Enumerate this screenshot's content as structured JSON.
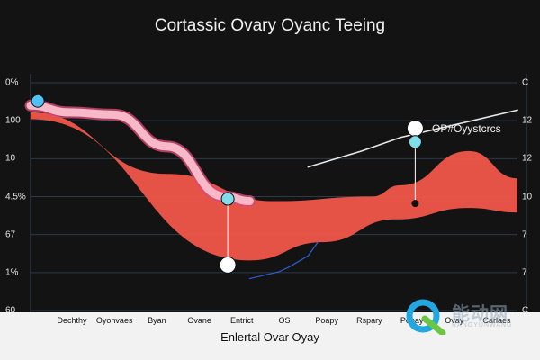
{
  "chart_data": {
    "type": "area",
    "title": "Cortassic Ovary Oyanc Teeing",
    "xlabel": "Enlertal Ovar Oyay",
    "ylabel": "",
    "x_tick_labels": [
      "Dechthy",
      "Oyonvaes",
      "Byan",
      "Ovane",
      "Entrict",
      "OS",
      "Poapy",
      "Rspary",
      "Popay",
      "Ovay",
      "Carlaes"
    ],
    "y_tick_labels_left": [
      "0%",
      "100",
      "10",
      "4.5%",
      "67",
      "1%",
      "60"
    ],
    "y_tick_labels_right": [
      "C",
      "12",
      "12",
      "10",
      "7",
      "7",
      "C"
    ],
    "ylim": [
      0,
      100
    ],
    "series": [
      {
        "color": "#f0564a",
        "upper": [
          [
            0,
            87
          ],
          [
            28,
            60
          ],
          [
            50,
            48
          ],
          [
            70,
            50
          ],
          [
            76,
            55
          ],
          [
            90,
            70
          ],
          [
            100,
            58
          ]
        ],
        "lower": [
          [
            0,
            84
          ],
          [
            45,
            22
          ],
          [
            60,
            30
          ],
          [
            75,
            40
          ],
          [
            90,
            45
          ],
          [
            100,
            43
          ]
        ]
      },
      {
        "color": "#f7b8c8",
        "values": [
          [
            0,
            90
          ],
          [
            8,
            87
          ],
          [
            17,
            86
          ],
          [
            28,
            72
          ],
          [
            40,
            50
          ],
          [
            45,
            48
          ]
        ]
      },
      {
        "color": "#e8e8e8",
        "values": [
          [
            57,
            63
          ],
          [
            68,
            70
          ],
          [
            76,
            76
          ],
          [
            86,
            81
          ],
          [
            100,
            88
          ]
        ]
      },
      {
        "color": "#2b5fcf",
        "values": [
          [
            45,
            14
          ],
          [
            51,
            17
          ],
          [
            53,
            19
          ],
          [
            57,
            24
          ],
          [
            59,
            30
          ]
        ]
      }
    ],
    "markers": [
      {
        "x": 1.5,
        "y": 92,
        "color": "#4fc3f7"
      },
      {
        "x": 40.5,
        "y": 49,
        "color": "#80deea"
      },
      {
        "x": 40.5,
        "y": 20,
        "color": "#ffffff"
      },
      {
        "x": 79,
        "y": 80,
        "color": "#ffffff"
      },
      {
        "x": 79,
        "y": 74,
        "color": "#80deea"
      },
      {
        "x": 79,
        "y": 47,
        "color": "#111111"
      }
    ],
    "annotation": "OP#Oyystcrcs",
    "grid": true
  },
  "watermark": {
    "text": "能动网",
    "subtext": "RANGYUNWANG"
  }
}
